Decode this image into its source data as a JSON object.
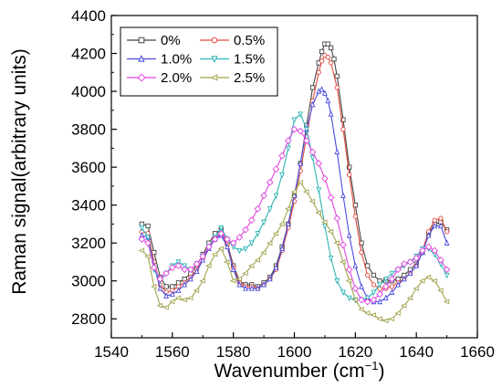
{
  "chart_data": {
    "type": "line",
    "title": "",
    "xlabel": "Wavenumber",
    "xlabel_unit": "(cm",
    "xlabel_unit_exp": "−1",
    "xlabel_unit_close": ")",
    "ylabel": "Raman signal(arbitrary units)",
    "xlim": [
      1540,
      1660
    ],
    "ylim": [
      2700,
      4400
    ],
    "xticks": [
      1540,
      1560,
      1580,
      1600,
      1620,
      1640,
      1660
    ],
    "yticks": [
      2800,
      3000,
      3200,
      3400,
      3600,
      3800,
      4000,
      4200,
      4400
    ],
    "grid": false,
    "legend_position": "top-left",
    "series": [
      {
        "name": "0%",
        "color": "#444444",
        "marker": "square",
        "x": [
          1550,
          1552,
          1554,
          1556,
          1558,
          1560,
          1562,
          1564,
          1566,
          1568,
          1570,
          1572,
          1574,
          1576,
          1578,
          1580,
          1582,
          1584,
          1586,
          1588,
          1590,
          1592,
          1594,
          1596,
          1598,
          1600,
          1602,
          1604,
          1606,
          1608,
          1609,
          1610,
          1611,
          1612,
          1613,
          1614,
          1616,
          1618,
          1620,
          1622,
          1624,
          1626,
          1628,
          1630,
          1632,
          1634,
          1636,
          1638,
          1640,
          1642,
          1644,
          1646,
          1648,
          1650
        ],
        "y": [
          3300,
          3290,
          3150,
          3020,
          2970,
          2970,
          2990,
          3010,
          3040,
          3080,
          3140,
          3200,
          3250,
          3270,
          3200,
          3080,
          3000,
          2980,
          2980,
          2970,
          2990,
          3020,
          3080,
          3180,
          3300,
          3450,
          3620,
          3820,
          4020,
          4150,
          4210,
          4250,
          4250,
          4230,
          4170,
          4080,
          3850,
          3600,
          3400,
          3200,
          3080,
          3030,
          3000,
          3000,
          3000,
          3010,
          3030,
          3060,
          3090,
          3150,
          3250,
          3300,
          3310,
          3270
        ]
      },
      {
        "name": "0.5%",
        "color": "#e24b3f",
        "marker": "circle",
        "x": [
          1550,
          1552,
          1554,
          1556,
          1558,
          1560,
          1562,
          1564,
          1566,
          1568,
          1570,
          1572,
          1574,
          1576,
          1578,
          1580,
          1582,
          1584,
          1586,
          1588,
          1590,
          1592,
          1594,
          1596,
          1598,
          1600,
          1602,
          1604,
          1606,
          1608,
          1609,
          1610,
          1611,
          1612,
          1614,
          1616,
          1618,
          1620,
          1622,
          1624,
          1626,
          1628,
          1630,
          1632,
          1634,
          1636,
          1638,
          1640,
          1642,
          1644,
          1646,
          1648,
          1650
        ],
        "y": [
          3260,
          3250,
          3100,
          2980,
          2940,
          2950,
          2970,
          2990,
          3020,
          3060,
          3120,
          3180,
          3230,
          3250,
          3190,
          3070,
          2990,
          2970,
          2970,
          2960,
          2980,
          3010,
          3060,
          3160,
          3280,
          3420,
          3580,
          3760,
          3950,
          4100,
          4160,
          4190,
          4180,
          4150,
          4020,
          3800,
          3560,
          3340,
          3150,
          3030,
          2980,
          2960,
          2960,
          2970,
          2990,
          3010,
          3040,
          3080,
          3160,
          3260,
          3320,
          3330,
          3260
        ]
      },
      {
        "name": "1.0%",
        "color": "#4a4ae0",
        "marker": "triangle-up",
        "x": [
          1550,
          1552,
          1554,
          1556,
          1558,
          1560,
          1562,
          1564,
          1566,
          1568,
          1570,
          1572,
          1574,
          1576,
          1578,
          1580,
          1582,
          1584,
          1586,
          1588,
          1590,
          1592,
          1594,
          1596,
          1598,
          1600,
          1602,
          1604,
          1606,
          1608,
          1609,
          1610,
          1611,
          1612,
          1614,
          1616,
          1618,
          1620,
          1622,
          1624,
          1626,
          1628,
          1630,
          1632,
          1634,
          1636,
          1638,
          1640,
          1642,
          1644,
          1646,
          1648,
          1650
        ],
        "y": [
          3240,
          3230,
          3080,
          2960,
          2920,
          2930,
          2950,
          2980,
          3010,
          3050,
          3110,
          3170,
          3220,
          3240,
          3180,
          3060,
          2980,
          2960,
          2960,
          2960,
          2980,
          3010,
          3070,
          3170,
          3300,
          3450,
          3620,
          3800,
          3930,
          4000,
          4010,
          3990,
          3950,
          3880,
          3680,
          3450,
          3240,
          3080,
          2970,
          2910,
          2890,
          2890,
          2910,
          2940,
          2980,
          3010,
          3040,
          3080,
          3150,
          3240,
          3290,
          3290,
          3200
        ]
      },
      {
        "name": "1.5%",
        "color": "#2bb3b3",
        "marker": "triangle-down",
        "x": [
          1550,
          1552,
          1554,
          1556,
          1558,
          1560,
          1562,
          1564,
          1566,
          1568,
          1570,
          1572,
          1574,
          1576,
          1578,
          1580,
          1582,
          1584,
          1586,
          1588,
          1590,
          1592,
          1594,
          1596,
          1598,
          1600,
          1602,
          1604,
          1606,
          1608,
          1610,
          1612,
          1614,
          1616,
          1618,
          1620,
          1622,
          1624,
          1626,
          1628,
          1630,
          1632,
          1634,
          1636,
          1638,
          1640,
          1642,
          1644,
          1646,
          1648,
          1650
        ],
        "y": [
          3280,
          3230,
          3060,
          3000,
          3040,
          3080,
          3100,
          3080,
          3060,
          3090,
          3130,
          3180,
          3230,
          3280,
          3220,
          3180,
          3160,
          3170,
          3200,
          3250,
          3310,
          3380,
          3450,
          3560,
          3700,
          3850,
          3880,
          3800,
          3650,
          3480,
          3290,
          3120,
          3000,
          2940,
          2910,
          2900,
          2900,
          2910,
          2940,
          2980,
          3010,
          3040,
          3060,
          3080,
          3100,
          3130,
          3170,
          3170,
          3140,
          3090,
          3030
        ]
      },
      {
        "name": "2.0%",
        "color": "#e044e0",
        "marker": "diamond",
        "x": [
          1550,
          1552,
          1554,
          1556,
          1558,
          1560,
          1562,
          1564,
          1566,
          1568,
          1570,
          1572,
          1574,
          1576,
          1578,
          1580,
          1582,
          1584,
          1586,
          1588,
          1590,
          1592,
          1594,
          1596,
          1598,
          1600,
          1602,
          1604,
          1606,
          1608,
          1610,
          1612,
          1614,
          1616,
          1618,
          1620,
          1622,
          1624,
          1626,
          1628,
          1630,
          1632,
          1634,
          1636,
          1638,
          1640,
          1642,
          1644,
          1646,
          1648,
          1650
        ],
        "y": [
          3220,
          3200,
          3070,
          3010,
          3040,
          3070,
          3080,
          3060,
          3060,
          3090,
          3130,
          3180,
          3220,
          3250,
          3220,
          3200,
          3230,
          3270,
          3320,
          3380,
          3450,
          3520,
          3590,
          3660,
          3740,
          3800,
          3790,
          3740,
          3680,
          3620,
          3540,
          3440,
          3330,
          3190,
          3060,
          2960,
          2900,
          2890,
          2900,
          2930,
          2970,
          3010,
          3060,
          3090,
          3100,
          3120,
          3160,
          3180,
          3160,
          3110,
          3060
        ]
      },
      {
        "name": "2.5%",
        "color": "#a3a350",
        "marker": "triangle-left",
        "x": [
          1550,
          1552,
          1554,
          1556,
          1558,
          1560,
          1562,
          1564,
          1566,
          1568,
          1570,
          1572,
          1574,
          1576,
          1578,
          1580,
          1582,
          1584,
          1586,
          1588,
          1590,
          1592,
          1594,
          1596,
          1598,
          1600,
          1602,
          1604,
          1606,
          1608,
          1610,
          1612,
          1614,
          1616,
          1618,
          1620,
          1622,
          1624,
          1626,
          1628,
          1630,
          1632,
          1634,
          1636,
          1638,
          1640,
          1642,
          1644,
          1646,
          1648,
          1650
        ],
        "y": [
          3160,
          3130,
          2970,
          2870,
          2860,
          2890,
          2910,
          2900,
          2910,
          2950,
          3000,
          3080,
          3140,
          3170,
          3100,
          3000,
          3010,
          3040,
          3080,
          3110,
          3150,
          3200,
          3250,
          3300,
          3380,
          3470,
          3520,
          3470,
          3420,
          3360,
          3310,
          3260,
          3200,
          3100,
          3000,
          2900,
          2850,
          2830,
          2820,
          2800,
          2790,
          2800,
          2830,
          2870,
          2910,
          2960,
          3000,
          3020,
          3000,
          2950,
          2890
        ]
      }
    ]
  }
}
